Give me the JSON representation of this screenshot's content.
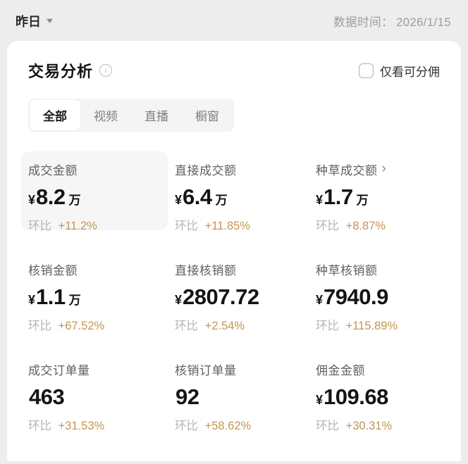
{
  "topbar": {
    "period_label": "昨日",
    "data_time_label": "数据时间：",
    "data_time_value": "2026/1/15"
  },
  "icons": {
    "dropdown_caret": "▼",
    "info": "i",
    "chevron_right": "›"
  },
  "card": {
    "title": "交易分析",
    "filter_label": "仅看可分佣",
    "filter_checked": false,
    "tabs": [
      {
        "label": "全部",
        "active": true
      },
      {
        "label": "视频",
        "active": false
      },
      {
        "label": "直播",
        "active": false
      },
      {
        "label": "橱窗",
        "active": false
      }
    ],
    "metrics": [
      {
        "label": "成交金额",
        "prefix": "¥",
        "value": "8.2",
        "suffix": "万",
        "compare_label": "环比",
        "compare_value": "+11.2%",
        "highlighted": true
      },
      {
        "label": "直接成交额",
        "prefix": "¥",
        "value": "6.4",
        "suffix": "万",
        "compare_label": "环比",
        "compare_value": "+11.85%"
      },
      {
        "label": "种草成交额",
        "prefix": "¥",
        "value": "1.7",
        "suffix": "万",
        "compare_label": "环比",
        "compare_value": "+8.87%",
        "has_arrow": true
      },
      {
        "label": "核销金额",
        "prefix": "¥",
        "value": "1.1",
        "suffix": "万",
        "compare_label": "环比",
        "compare_value": "+67.52%"
      },
      {
        "label": "直接核销额",
        "prefix": "¥",
        "value": "2807.72",
        "suffix": "",
        "compare_label": "环比",
        "compare_value": "+2.54%"
      },
      {
        "label": "种草核销额",
        "prefix": "¥",
        "value": "7940.9",
        "suffix": "",
        "compare_label": "环比",
        "compare_value": "+115.89%"
      },
      {
        "label": "成交订单量",
        "prefix": "",
        "value": "463",
        "suffix": "",
        "compare_label": "环比",
        "compare_value": "+31.53%"
      },
      {
        "label": "核销订单量",
        "prefix": "",
        "value": "92",
        "suffix": "",
        "compare_label": "环比",
        "compare_value": "+58.62%"
      },
      {
        "label": "佣金金额",
        "prefix": "¥",
        "value": "109.68",
        "suffix": "",
        "compare_label": "环比",
        "compare_value": "+30.31%"
      }
    ]
  },
  "colors": {
    "accent_percent": "#c6954f",
    "page_bg": "#ededed",
    "card_bg": "#ffffff",
    "highlight_bg": "#f6f6f6"
  }
}
